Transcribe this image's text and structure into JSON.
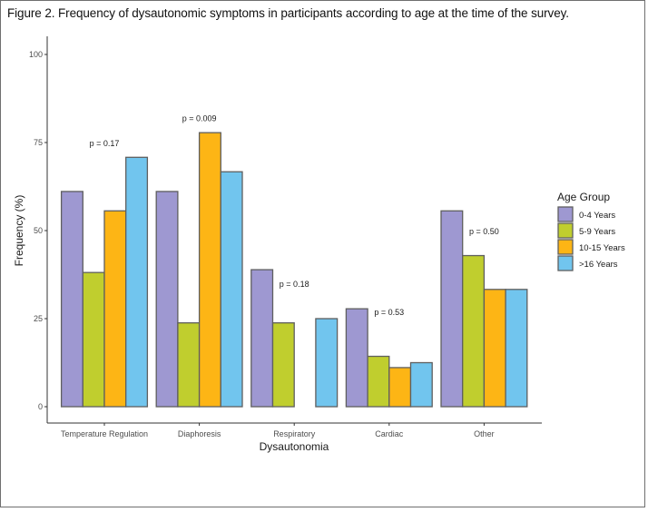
{
  "caption": "Figure 2. Frequency of dysautonomic symptoms in participants according to age at the time of the survey.",
  "chart_data": {
    "type": "bar",
    "title": "",
    "xlabel": "Dysautonomia",
    "ylabel": "Frequency (%)",
    "ylim": [
      0,
      100
    ],
    "yticks": [
      0,
      25,
      50,
      75,
      100
    ],
    "grid": false,
    "categories": [
      "Temperature Regulation",
      "Diaphoresis",
      "Respiratory",
      "Cardiac",
      "Other"
    ],
    "legend": {
      "title": "Age Group",
      "position": "right"
    },
    "series": [
      {
        "name": "0-4 Years",
        "color": "#9e98d1",
        "values": [
          61.1,
          61.1,
          38.9,
          27.8,
          55.6
        ]
      },
      {
        "name": "5-9 Years",
        "color": "#c0ce2e",
        "values": [
          38.1,
          23.8,
          23.8,
          14.3,
          42.9
        ]
      },
      {
        "name": "10-15 Years",
        "color": "#fdb515",
        "values": [
          55.6,
          77.8,
          0,
          11.1,
          33.3
        ]
      },
      {
        "name": ">16 Years",
        "color": "#71c5ee",
        "values": [
          70.8,
          66.7,
          25.0,
          12.5,
          33.3
        ]
      }
    ],
    "annotations": [
      {
        "category": "Temperature Regulation",
        "text": "p = 0.17",
        "y": 74
      },
      {
        "category": "Diaphoresis",
        "text": "p = 0.009",
        "y": 81
      },
      {
        "category": "Respiratory",
        "text": "p = 0.18",
        "y": 34
      },
      {
        "category": "Cardiac",
        "text": "p = 0.53",
        "y": 26
      },
      {
        "category": "Other",
        "text": "p = 0.50",
        "y": 49
      }
    ]
  }
}
